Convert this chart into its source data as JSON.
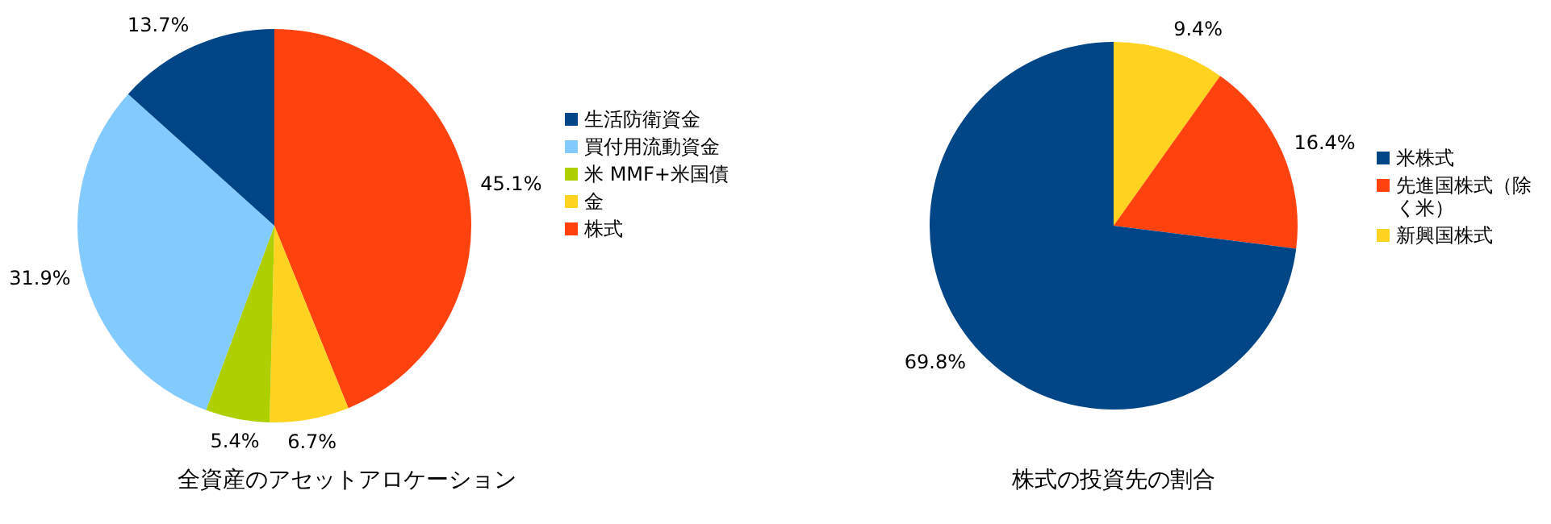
{
  "chart_data": [
    {
      "type": "pie",
      "title": "全資産のアセットアロケーション",
      "categories": [
        "生活防衛資金",
        "買付用流動資金",
        "米 MMF+米国債",
        "金",
        "株式"
      ],
      "values": [
        13.7,
        31.9,
        5.4,
        6.7,
        45.1
      ],
      "colors": [
        "#004586",
        "#83caff",
        "#aecf00",
        "#ffd320",
        "#ff420e"
      ],
      "value_labels": [
        "13.7%",
        "31.9%",
        "5.4%",
        "6.7%",
        "45.1%"
      ],
      "legend": "right"
    },
    {
      "type": "pie",
      "title": "株式の投資先の割合",
      "categories": [
        "米株式",
        "先進国株式（除く米）",
        "新興国株式"
      ],
      "values": [
        69.8,
        16.4,
        9.4
      ],
      "colors": [
        "#004586",
        "#ff420e",
        "#ffd320"
      ],
      "value_labels": [
        "69.8%",
        "16.4%",
        "9.4%"
      ],
      "legend": "right"
    }
  ]
}
